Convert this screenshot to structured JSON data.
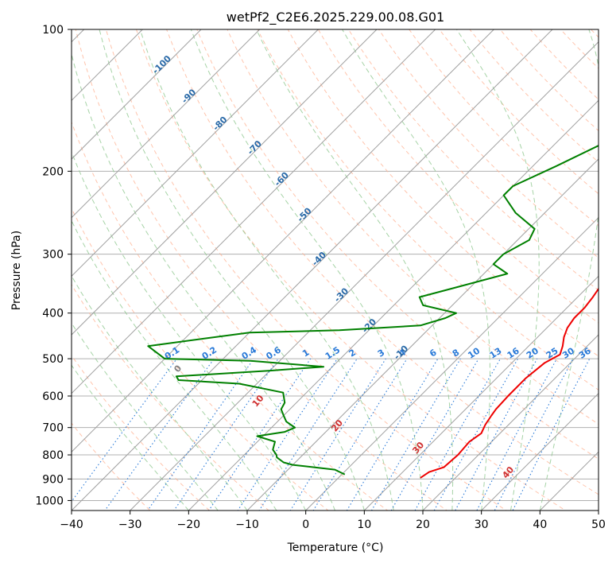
{
  "chart_data": {
    "type": "line",
    "title": "wetPf2_C2E6.2025.229.00.08.G01",
    "xlabel": "Temperature (°C)",
    "ylabel": "Pressure (hPa)",
    "xlim": [
      -40,
      50
    ],
    "ylim": [
      1050,
      100
    ],
    "yscale": "log",
    "x_ticks": [
      -40,
      -30,
      -20,
      -10,
      0,
      10,
      20,
      30,
      40,
      50
    ],
    "x_tick_labels": [
      "−40",
      "−30",
      "−20",
      "−10",
      "0",
      "10",
      "20",
      "30",
      "40",
      "50"
    ],
    "y_ticks": [
      1000,
      900,
      800,
      700,
      600,
      500,
      400,
      300,
      200,
      100
    ],
    "y_tick_labels": [
      "1000",
      "900",
      "800",
      "700",
      "600",
      "500",
      "400",
      "300",
      "200",
      "100"
    ],
    "grid": true,
    "colors": {
      "temperature": "#ee0000",
      "dewpoint": "#008000",
      "isotherm": "#a0a0a0",
      "dry_adiabat": "#ffb090",
      "moist_adiabat": "#90c890",
      "mixing_ratio": "#2a7ad8",
      "dry_label": "#d03030",
      "isotherm_label": "#2a6aa8",
      "grid": "#b0b0b0"
    },
    "series": [
      {
        "role": "temperature",
        "points": [
          [
            14.0,
            895
          ],
          [
            14.5,
            870
          ],
          [
            16.2,
            850
          ],
          [
            16.5,
            800
          ],
          [
            16.2,
            750
          ],
          [
            16.8,
            720
          ],
          [
            16.0,
            690
          ],
          [
            15.5,
            660
          ],
          [
            15.2,
            640
          ],
          [
            15.0,
            600
          ],
          [
            15.0,
            550
          ],
          [
            15.6,
            510
          ],
          [
            16.8,
            490
          ],
          [
            15.8,
            470
          ],
          [
            14.5,
            450
          ],
          [
            13.5,
            430
          ],
          [
            13.0,
            410
          ],
          [
            13.0,
            390
          ],
          [
            12.6,
            370
          ],
          [
            12.0,
            350
          ],
          [
            11.0,
            330
          ],
          [
            9.2,
            300
          ],
          [
            8.8,
            290
          ],
          [
            8.0,
            270
          ],
          [
            7.8,
            250
          ],
          [
            7.5,
            235
          ],
          [
            7.2,
            220
          ],
          [
            6.5,
            200
          ],
          [
            5.5,
            180
          ],
          [
            5.0,
            165
          ],
          [
            5.2,
            150
          ],
          [
            6.5,
            135
          ],
          [
            7.0,
            125
          ],
          [
            5.8,
            115
          ],
          [
            6.5,
            105
          ],
          [
            8.5,
            100
          ]
        ]
      },
      {
        "role": "dewpoint",
        "points": [
          [
            0.5,
            880
          ],
          [
            -2.0,
            860
          ],
          [
            -10.0,
            840
          ],
          [
            -12.0,
            830
          ],
          [
            -14.0,
            810
          ],
          [
            -14.5,
            800
          ],
          [
            -16.0,
            780
          ],
          [
            -17.0,
            750
          ],
          [
            -21.0,
            730
          ],
          [
            -17.0,
            715
          ],
          [
            -16.0,
            700
          ],
          [
            -18.5,
            680
          ],
          [
            -20.0,
            660
          ],
          [
            -21.5,
            640
          ],
          [
            -22.0,
            620
          ],
          [
            -24.0,
            590
          ],
          [
            -33.0,
            565
          ],
          [
            -44.0,
            555
          ],
          [
            -45.0,
            545
          ],
          [
            -30.0,
            530
          ],
          [
            -21.5,
            520
          ],
          [
            -35.0,
            505
          ],
          [
            -50.0,
            500
          ],
          [
            -55.0,
            470
          ],
          [
            -40.0,
            440
          ],
          [
            -25.0,
            435
          ],
          [
            -12.0,
            425
          ],
          [
            -9.0,
            410
          ],
          [
            -8.0,
            400
          ],
          [
            -15.0,
            385
          ],
          [
            -17.0,
            370
          ],
          [
            -13.0,
            355
          ],
          [
            -6.0,
            330
          ],
          [
            -10.0,
            315
          ],
          [
            -10.0,
            300
          ],
          [
            -8.0,
            280
          ],
          [
            -9.0,
            265
          ],
          [
            -15.0,
            245
          ],
          [
            -20.0,
            225
          ],
          [
            -20.0,
            215
          ],
          [
            -16.0,
            195
          ],
          [
            -12.0,
            175
          ],
          [
            -10.0,
            160
          ],
          [
            -6.5,
            145
          ],
          [
            -3.5,
            130
          ],
          [
            -1.5,
            115
          ],
          [
            -1.0,
            100
          ]
        ]
      }
    ],
    "isotherm_labels": [
      "-100",
      "-90",
      "-80",
      "-70",
      "-60",
      "-50",
      "-40",
      "-30",
      "-20",
      "-10"
    ],
    "mixing_ratio_labels": [
      "0.1",
      "0.2",
      "0.4",
      "0.6",
      "1",
      "1.5",
      "2",
      "3",
      "4",
      "6",
      "8",
      "10",
      "13",
      "16",
      "20",
      "25",
      "30",
      "36"
    ],
    "dry_adiabat_labels": [
      "0",
      "10",
      "20",
      "30",
      "40"
    ]
  }
}
